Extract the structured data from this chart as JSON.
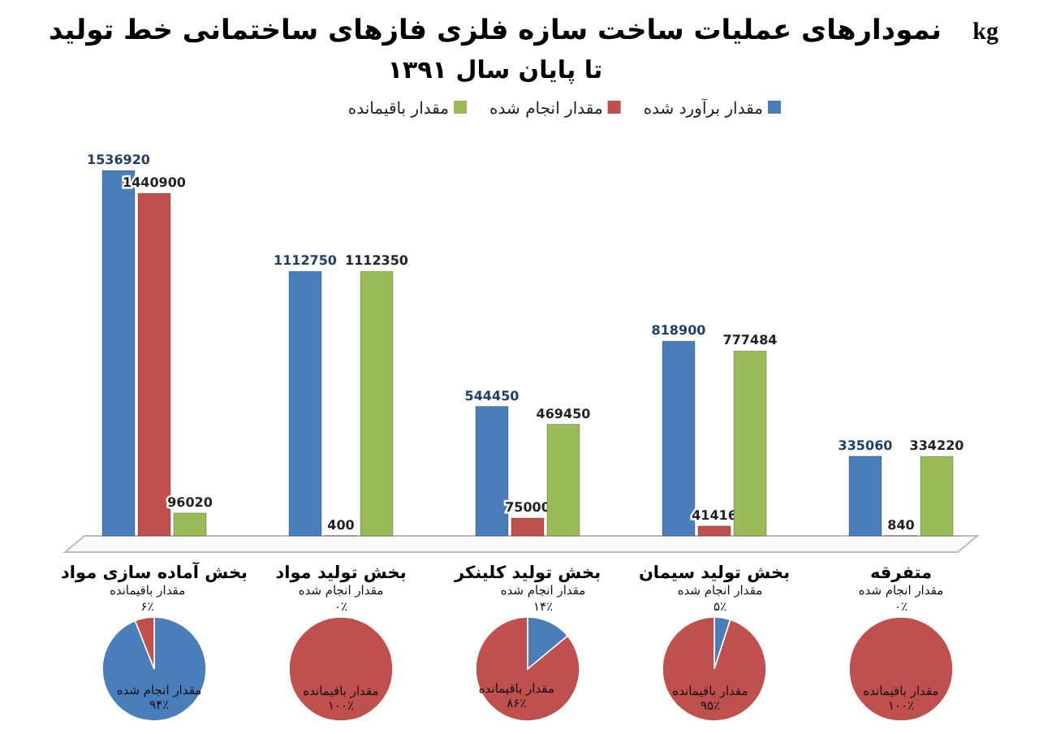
{
  "chart_data": [
    {
      "type": "bar",
      "title": "نمودارهای عملیات ساخت سازه فلزی فازهای ساختمانی خط تولید",
      "subtitle": "تا پایان سال ۱۳۹۱",
      "ylabel": "kg",
      "categories": [
        "بخش آماده سازی مواد",
        "بخش تولید مواد",
        "بخش تولید کلینکر",
        "بخش تولید سیمان",
        "متفرقه"
      ],
      "series": [
        {
          "name": "مقدار برآورد شده",
          "color": "#4a7ebb",
          "values": [
            1536920,
            1112750,
            544450,
            818900,
            335060
          ]
        },
        {
          "name": "مقدار انجام شده",
          "color": "#c0504d",
          "values": [
            1440900,
            400,
            75000,
            41416,
            840
          ]
        },
        {
          "name": "مقدار باقیمانده",
          "color": "#9bbb59",
          "values": [
            96020,
            1112350,
            469450,
            777484,
            334220
          ]
        }
      ],
      "data_labels": true,
      "legend": "top",
      "grid": false
    },
    {
      "type": "pie",
      "categories": [
        "مقدار انجام شده",
        "مقدار باقیمانده"
      ],
      "values": [
        94,
        6
      ],
      "colors": [
        "#4a7ebb",
        "#c0504d"
      ],
      "value_labels": [
        "۹۴٪",
        "۶٪"
      ]
    },
    {
      "type": "pie",
      "categories": [
        "مقدار انجام شده",
        "مقدار باقیمانده"
      ],
      "values": [
        0,
        100
      ],
      "colors": [
        "#4a7ebb",
        "#c0504d"
      ],
      "value_labels": [
        "۰٪",
        "۱۰۰٪"
      ]
    },
    {
      "type": "pie",
      "categories": [
        "مقدار انجام شده",
        "مقدار باقیمانده"
      ],
      "values": [
        14,
        86
      ],
      "colors": [
        "#4a7ebb",
        "#c0504d"
      ],
      "value_labels": [
        "۱۴٪",
        "۸۶٪"
      ]
    },
    {
      "type": "pie",
      "categories": [
        "مقدار انجام شده",
        "مقدار باقیمانده"
      ],
      "values": [
        5,
        95
      ],
      "colors": [
        "#4a7ebb",
        "#c0504d"
      ],
      "value_labels": [
        "۵٪",
        "۹۵٪"
      ]
    },
    {
      "type": "pie",
      "categories": [
        "مقدار انجام شده",
        "مقدار باقیمانده"
      ],
      "values": [
        0,
        100
      ],
      "colors": [
        "#4a7ebb",
        "#c0504d"
      ],
      "value_labels": [
        "۰٪",
        "۱۰۰٪"
      ]
    }
  ]
}
